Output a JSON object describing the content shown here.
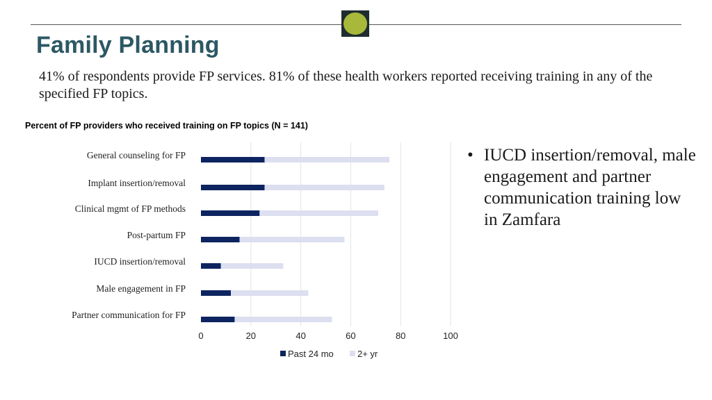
{
  "page": {
    "title": "Family Planning",
    "intro": "41% of respondents provide FP services. 81% of these health workers reported receiving training in any of the specified FP topics.",
    "bullet": "IUCD insertion/removal, male engagement and partner communication training low in Zamfara",
    "bullet_marker": "•",
    "colors": {
      "title": "#2c5864",
      "accent_dot": "#a8b83a",
      "badge": "#1f2d2f"
    }
  },
  "chart_data": {
    "type": "bar",
    "orientation": "horizontal",
    "stacked": true,
    "title": "Percent of FP providers who received training on FP topics (N = 141)",
    "categories": [
      "General counseling for FP",
      "Implant insertion/removal",
      "Clinical mgmt of FP methods",
      "Post-partum FP",
      "IUCD insertion/removal",
      "Male engagement in FP",
      "Partner communication for FP"
    ],
    "series": [
      {
        "name": "Past 24 mo",
        "color": "#0e2461",
        "values": [
          25.5,
          25.5,
          23.5,
          15.5,
          8,
          12,
          13.5
        ]
      },
      {
        "name": "2+ yr",
        "color": "#dcdff0",
        "values": [
          50,
          48,
          47.5,
          42,
          25,
          31,
          39
        ]
      }
    ],
    "xlim": [
      0,
      100
    ],
    "xticks": [
      0,
      20,
      40,
      60,
      80,
      100
    ],
    "xlabel": "",
    "ylabel": "",
    "grid": true,
    "legend": "bottom"
  }
}
